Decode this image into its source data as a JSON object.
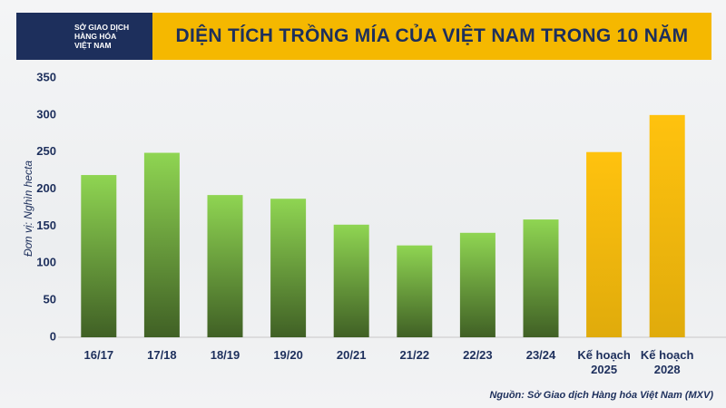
{
  "header": {
    "logo": [
      "SỞ GIAO DỊCH",
      "HÀNG HÓA",
      "VIỆT NAM"
    ]
  },
  "chart_data": {
    "type": "bar",
    "title": "DIỆN TÍCH TRỒNG MÍA CỦA VIỆT NAM TRONG 10 NĂM",
    "y_label": "Đơn vị: Nghìn hecta",
    "source": "Nguồn: Sở Giao dịch Hàng hóa Việt Nam (MXV)",
    "categories": [
      "16/17",
      "17/18",
      "18/19",
      "19/20",
      "20/21",
      "21/22",
      "22/23",
      "23/24",
      "Kế hoạch 2025",
      "Kế hoạch 2028"
    ],
    "values": [
      219,
      249,
      192,
      187,
      152,
      124,
      141,
      159,
      250,
      300
    ],
    "colors": [
      "#8fd552",
      "#8fd552",
      "#8fd552",
      "#8fd552",
      "#8fd552",
      "#8fd552",
      "#8fd552",
      "#8fd552",
      "#ffc20e",
      "#ffc20e"
    ],
    "ylim": [
      0,
      350
    ],
    "yticks": [
      0,
      50,
      100,
      150,
      200,
      250,
      300,
      350
    ],
    "grid": false
  }
}
